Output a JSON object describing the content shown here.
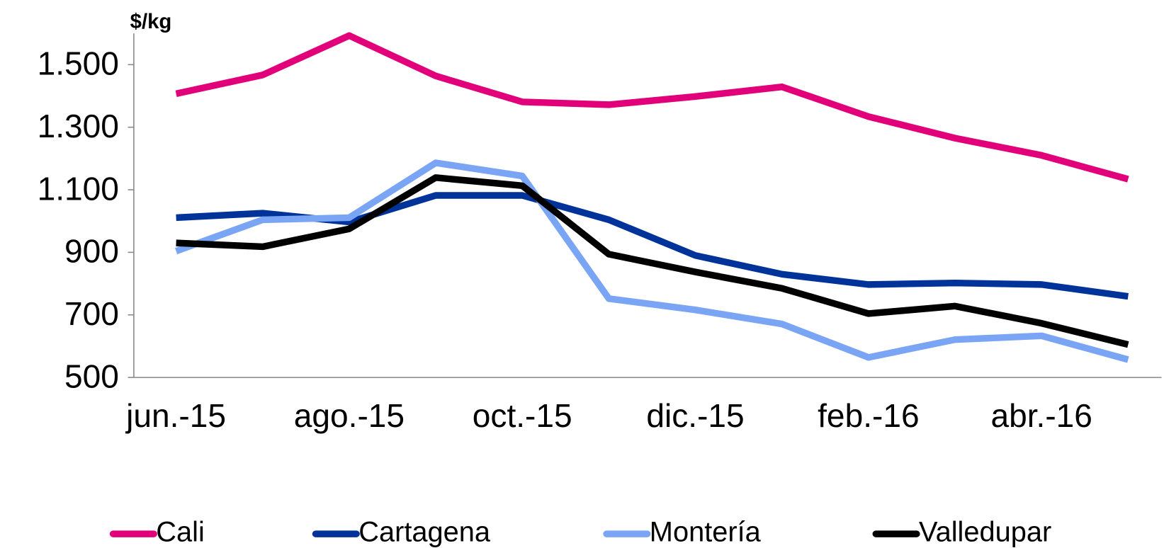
{
  "chart_data": {
    "type": "line",
    "y_label": "$/kg",
    "categories": [
      "jun.-15",
      null,
      "ago.-15",
      null,
      "oct.-15",
      null,
      "dic.-15",
      null,
      "feb.-16",
      null,
      "abr.-16",
      null
    ],
    "ylim": [
      500,
      1600
    ],
    "yticks": [
      500,
      700,
      900,
      {
        "value": 1100,
        "label": "1.100"
      },
      {
        "value": 1300,
        "label": "1.300"
      },
      {
        "value": 1500,
        "label": "1.500"
      }
    ],
    "series": [
      {
        "name": "Cali",
        "color": "#e2007a",
        "values": [
          1407,
          1467,
          1593,
          1464,
          1381,
          1372,
          1398,
          1429,
          1334,
          1265,
          1210,
          1134
        ]
      },
      {
        "name": "Cartagena",
        "color": "#003399",
        "values": [
          1011,
          1025,
          997,
          1082,
          1082,
          1004,
          890,
          830,
          797,
          802,
          797,
          759
        ]
      },
      {
        "name": "Montería",
        "color": "#7aa5f5",
        "values": [
          904,
          1004,
          1011,
          1186,
          1144,
          752,
          716,
          671,
          564,
          621,
          633,
          557
        ]
      },
      {
        "name": "Valledupar",
        "color": "#000000",
        "values": [
          930,
          918,
          975,
          1139,
          1113,
          894,
          837,
          785,
          704,
          728,
          673,
          605
        ]
      }
    ]
  }
}
